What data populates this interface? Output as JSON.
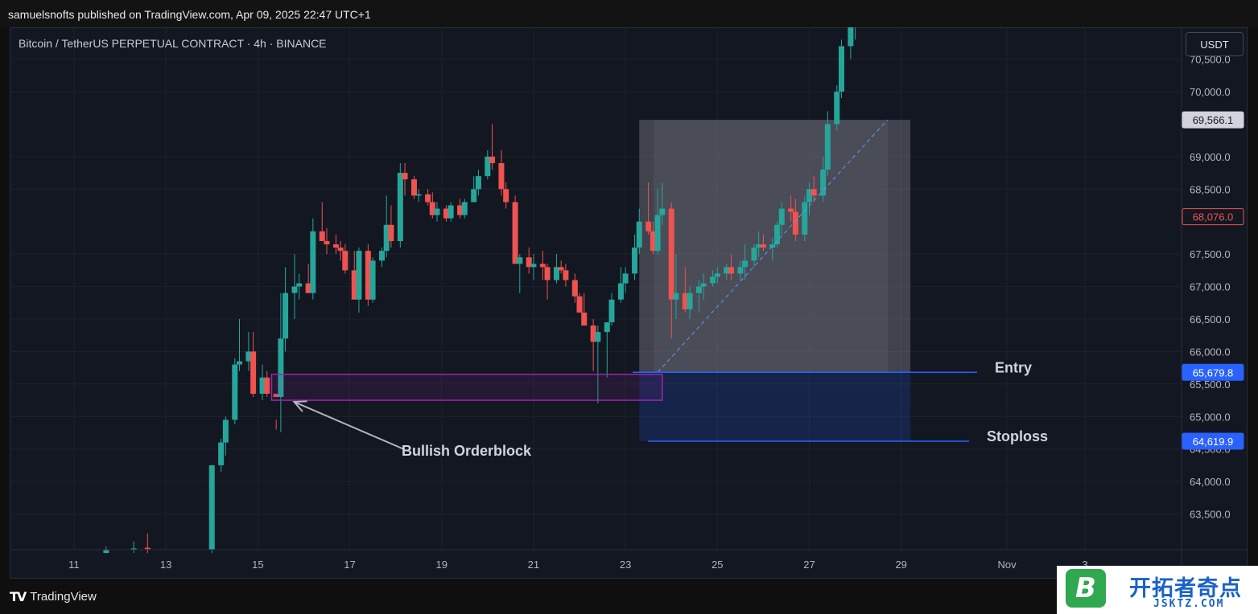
{
  "header": {
    "publisher_line": "samuelsnofts published on TradingView.com, Apr 09, 2025 22:47 UTC+1"
  },
  "chart_title": "Bitcoin / TetherUS PERPETUAL CONTRACT · 4h · BINANCE",
  "currency_button": "USDT",
  "footer": {
    "brand": "TradingView",
    "logo_icon": "tradingview-logo-icon"
  },
  "watermark": {
    "badge_letter": "B",
    "text": "开拓者奇点",
    "domain": "JSKTZ.COM"
  },
  "colors": {
    "up": "#26a69a",
    "down": "#ef5350",
    "background": "#131722",
    "orderblock": "#9c27b0",
    "line_blue": "#2962ff",
    "price_badge_blue": "#2962ff",
    "price_badge_red": "#ef5350"
  },
  "chart_data": {
    "type": "candlestick",
    "ylim": [
      62950,
      70990
    ],
    "y_ticks": [
      {
        "value": 70500,
        "label": "70,500.0"
      },
      {
        "value": 70000,
        "label": "70,000.0"
      },
      {
        "value": 69000,
        "label": "69,000.0"
      },
      {
        "value": 68500,
        "label": "68,500.0"
      },
      {
        "value": 67500,
        "label": "67,500.0"
      },
      {
        "value": 67000,
        "label": "67,000.0"
      },
      {
        "value": 66500,
        "label": "66,500.0"
      },
      {
        "value": 66000,
        "label": "66,000.0"
      },
      {
        "value": 65500,
        "label": "65,500.0"
      },
      {
        "value": 65000,
        "label": "65,000.0"
      },
      {
        "value": 64500,
        "label": "64,500.0"
      },
      {
        "value": 64000,
        "label": "64,000.0"
      },
      {
        "value": 63500,
        "label": "63,500.0"
      }
    ],
    "x_ticks": [
      "11",
      "13",
      "15",
      "17",
      "19",
      "21",
      "23",
      "25",
      "27",
      "29",
      "Nov",
      "3"
    ],
    "x_tick_positions_days": [
      11,
      13,
      15,
      17,
      19,
      21,
      23,
      25,
      27,
      29,
      31.3,
      33
    ],
    "x_range_days": [
      9.6,
      35.1
    ],
    "candles": {
      "fields": [
        "day",
        "open",
        "high",
        "low",
        "close"
      ],
      "rows": [
        [
          11.7,
          62900,
          63000,
          62900,
          62950
        ],
        [
          12.3,
          62950,
          63080,
          62900,
          62970
        ],
        [
          12.6,
          62980,
          63200,
          62900,
          62960
        ],
        [
          14.0,
          62950,
          63650,
          62900,
          64250
        ],
        [
          14.2,
          64250,
          64660,
          64150,
          64600
        ],
        [
          14.3,
          64600,
          65000,
          64400,
          64950
        ],
        [
          14.5,
          64950,
          65900,
          64880,
          65800
        ],
        [
          14.6,
          65800,
          66500,
          65700,
          65850
        ],
        [
          14.8,
          65850,
          66300,
          65700,
          66000
        ],
        [
          14.9,
          66000,
          66300,
          65300,
          65350
        ],
        [
          15.1,
          65350,
          65800,
          65250,
          65600
        ],
        [
          15.2,
          65600,
          65700,
          65300,
          65350
        ],
        [
          15.4,
          65350,
          64950,
          64800,
          65300
        ],
        [
          15.5,
          65300,
          66900,
          64760,
          66200
        ],
        [
          15.6,
          66200,
          67300,
          66000,
          66900
        ],
        [
          15.8,
          66900,
          67500,
          66500,
          67000
        ],
        [
          15.9,
          67000,
          67200,
          66800,
          67050
        ],
        [
          16.1,
          67050,
          67350,
          66900,
          66900
        ],
        [
          16.2,
          66900,
          68050,
          66800,
          67850
        ],
        [
          16.4,
          67850,
          68300,
          67700,
          67700
        ],
        [
          16.5,
          67700,
          67900,
          67500,
          67650
        ],
        [
          16.7,
          67650,
          67800,
          67500,
          67600
        ],
        [
          16.8,
          67600,
          67700,
          67400,
          67550
        ],
        [
          16.9,
          67550,
          67650,
          67200,
          67250
        ],
        [
          17.1,
          67250,
          67550,
          66800,
          66800
        ],
        [
          17.2,
          66800,
          67600,
          66600,
          67550
        ],
        [
          17.4,
          67550,
          67650,
          66700,
          66800
        ],
        [
          17.5,
          66800,
          67450,
          66750,
          67400
        ],
        [
          17.7,
          67400,
          67600,
          67300,
          67550
        ],
        [
          17.8,
          67550,
          68400,
          67450,
          67950
        ],
        [
          17.9,
          67950,
          68250,
          67600,
          67700
        ],
        [
          18.1,
          67700,
          68900,
          67600,
          68750
        ],
        [
          18.2,
          68750,
          68900,
          68400,
          68650
        ],
        [
          18.4,
          68650,
          68700,
          68350,
          68400
        ],
        [
          18.5,
          68400,
          68500,
          68300,
          68420
        ],
        [
          18.7,
          68420,
          68500,
          68250,
          68300
        ],
        [
          18.8,
          68300,
          68450,
          68050,
          68100
        ],
        [
          18.9,
          68100,
          68300,
          68000,
          68200
        ],
        [
          19.1,
          68200,
          68250,
          68000,
          68050
        ],
        [
          19.2,
          68050,
          68300,
          68000,
          68250
        ],
        [
          19.4,
          68250,
          68350,
          68050,
          68100
        ],
        [
          19.5,
          68100,
          68350,
          68050,
          68300
        ],
        [
          19.7,
          68300,
          68700,
          68300,
          68500
        ],
        [
          19.8,
          68500,
          68800,
          68400,
          68700
        ],
        [
          20.0,
          68700,
          69100,
          68650,
          69000
        ],
        [
          20.1,
          69000,
          69500,
          68800,
          68900
        ],
        [
          20.3,
          68900,
          69100,
          68400,
          68500
        ],
        [
          20.4,
          68500,
          68600,
          68200,
          68300
        ],
        [
          20.6,
          68300,
          68400,
          67400,
          67350
        ],
        [
          20.7,
          67350,
          67500,
          66900,
          67450
        ],
        [
          20.9,
          67450,
          67600,
          67200,
          67300
        ],
        [
          21.0,
          67300,
          67500,
          67100,
          67350
        ],
        [
          21.2,
          67350,
          67550,
          67100,
          67300
        ],
        [
          21.3,
          67300,
          67350,
          66800,
          67100
        ],
        [
          21.5,
          67100,
          67500,
          67050,
          67300
        ],
        [
          21.6,
          67300,
          67400,
          67200,
          67250
        ],
        [
          21.7,
          67250,
          67350,
          67000,
          67100
        ],
        [
          21.9,
          67100,
          67200,
          66750,
          66850
        ],
        [
          22.0,
          66850,
          66900,
          66700,
          66600
        ],
        [
          22.1,
          66600,
          66900,
          66500,
          66400
        ],
        [
          22.3,
          66400,
          66500,
          65700,
          66150
        ],
        [
          22.4,
          66150,
          66400,
          65200,
          66300
        ],
        [
          22.6,
          66300,
          66400,
          65600,
          66450
        ],
        [
          22.7,
          66450,
          66900,
          66400,
          66800
        ],
        [
          22.9,
          66800,
          67300,
          66750,
          67050
        ],
        [
          23.0,
          67050,
          67300,
          66900,
          67200
        ],
        [
          23.2,
          67200,
          67800,
          67100,
          67600
        ],
        [
          23.3,
          67600,
          68200,
          67500,
          68000
        ],
        [
          23.5,
          68000,
          68600,
          67800,
          67850
        ],
        [
          23.6,
          67850,
          68000,
          67500,
          67550
        ],
        [
          23.7,
          67550,
          68500,
          67500,
          68100
        ],
        [
          23.8,
          68100,
          68600,
          67950,
          68200
        ],
        [
          24.0,
          68200,
          68300,
          66200,
          66800
        ],
        [
          24.1,
          66800,
          67500,
          66500,
          66900
        ],
        [
          24.3,
          66900,
          67300,
          66600,
          66650
        ],
        [
          24.4,
          66650,
          67000,
          66500,
          66900
        ],
        [
          24.6,
          66900,
          67100,
          66600,
          67000
        ],
        [
          24.7,
          67000,
          67200,
          66800,
          67050
        ],
        [
          24.9,
          67050,
          67250,
          67000,
          67150
        ],
        [
          25.0,
          67150,
          67300,
          67050,
          67200
        ],
        [
          25.2,
          67200,
          67350,
          67100,
          67300
        ],
        [
          25.3,
          67300,
          67500,
          67100,
          67200
        ],
        [
          25.5,
          67200,
          67400,
          67100,
          67300
        ],
        [
          25.6,
          67300,
          67650,
          67100,
          67400
        ],
        [
          25.8,
          67400,
          67650,
          67300,
          67600
        ],
        [
          25.9,
          67600,
          67850,
          67450,
          67650
        ],
        [
          26.0,
          67650,
          67800,
          67550,
          67600
        ],
        [
          26.2,
          67600,
          67750,
          67400,
          67650
        ],
        [
          26.3,
          67650,
          68000,
          67600,
          67950
        ],
        [
          26.4,
          67950,
          68300,
          67800,
          68200
        ],
        [
          26.6,
          68200,
          68400,
          68000,
          68150
        ],
        [
          26.7,
          68150,
          68350,
          67700,
          67800
        ],
        [
          26.9,
          67800,
          68400,
          67700,
          68300
        ],
        [
          27.0,
          68300,
          68600,
          68100,
          68500
        ],
        [
          27.1,
          68500,
          68700,
          68300,
          68400
        ],
        [
          27.3,
          68400,
          69000,
          68300,
          68800
        ],
        [
          27.4,
          68800,
          69700,
          68700,
          69500
        ],
        [
          27.6,
          69500,
          70100,
          69400,
          70000
        ],
        [
          27.7,
          70000,
          70800,
          69900,
          70700
        ],
        [
          27.9,
          70700,
          71100,
          70500,
          71000
        ],
        [
          28.0,
          71000,
          71200,
          70800,
          71050
        ]
      ]
    },
    "orderblock": {
      "label": "Bullish Orderblock",
      "x_start_days": 15.3,
      "x_end_days": 23.8,
      "y_top": 65650,
      "y_bottom": 65250
    },
    "trade_box": {
      "x_start_days": 23.3,
      "x_end_days": 29.2,
      "target_price": 69566.1,
      "entry_price": 65679.8,
      "stop_price": 64619.9,
      "entry_label": "Entry",
      "stop_label": "Stoploss"
    },
    "price_badges": [
      {
        "value": 69566.1,
        "label": "69,566.1",
        "style": "gray"
      },
      {
        "value": 68076.0,
        "label": "68,076.0",
        "style": "red"
      },
      {
        "value": 65679.8,
        "label": "65,679.8",
        "style": "blue"
      },
      {
        "value": 64619.9,
        "label": "64,619.9",
        "style": "blue"
      }
    ]
  }
}
